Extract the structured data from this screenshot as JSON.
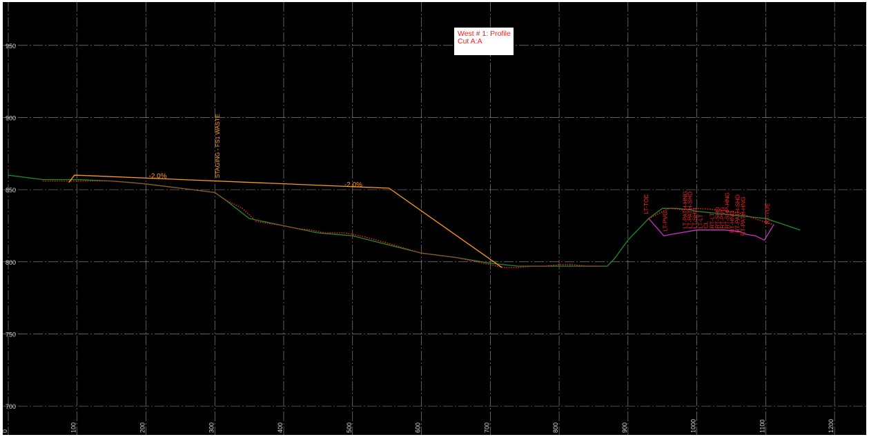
{
  "chart_data": {
    "type": "line",
    "title": "West # 1: Profile",
    "subtitle": "Cut A:A",
    "xlabel": "",
    "ylabel": "",
    "xlim": [
      -8,
      1246
    ],
    "ylim": [
      680,
      980
    ],
    "grid": true,
    "x_ticks": [
      0,
      100,
      200,
      300,
      400,
      500,
      600,
      700,
      800,
      900,
      1000,
      1100,
      1200
    ],
    "x_tick_labels": [
      "0",
      "100",
      "200",
      "300",
      "400",
      "500",
      "600",
      "700",
      "800",
      "900",
      "1000",
      "1100",
      "1200"
    ],
    "y_ticks": [
      700,
      750,
      800,
      850,
      900,
      950
    ],
    "y_tick_labels": [
      "700",
      "750",
      "800",
      "850",
      "900",
      "950"
    ],
    "series": [
      {
        "color": "#1f8f2a",
        "style": "solid",
        "x": [
          0,
          50,
          100,
          150,
          200,
          250,
          300,
          315,
          350,
          400,
          450,
          500,
          550,
          600,
          650,
          700,
          740,
          800,
          850,
          870,
          880,
          900,
          930,
          950,
          970,
          990,
          1000,
          1100,
          1150
        ],
        "y": [
          860,
          857,
          857,
          856,
          854,
          851,
          848,
          843,
          830,
          825,
          820,
          818,
          812,
          806,
          803,
          799,
          797,
          797,
          797,
          797,
          802,
          815,
          830,
          837,
          837,
          836,
          835,
          830,
          822
        ]
      },
      {
        "color": "#ff2020",
        "style": "dotted",
        "x": [
          50,
          90,
          120,
          150,
          180,
          300,
          315,
          340,
          360,
          400,
          420,
          440,
          460,
          470,
          480,
          490,
          500,
          520,
          550,
          600,
          650,
          680,
          700,
          720,
          740,
          760,
          780,
          800,
          820,
          840,
          860
        ],
        "y": [
          856,
          856,
          856,
          856,
          855,
          848,
          843,
          837,
          828,
          825,
          823,
          822,
          820,
          820,
          820,
          820,
          819,
          817,
          813,
          806,
          803,
          800,
          798,
          796,
          796,
          797,
          797,
          798,
          798,
          797,
          797
        ]
      },
      {
        "color": "#ff2020",
        "style": "dotted",
        "x": [
          930,
          960,
          980,
          1000,
          1030,
          1060,
          1090,
          1110
        ],
        "y": [
          830,
          837,
          836,
          837,
          836,
          834,
          829,
          826
        ]
      },
      {
        "color": "#ff9a1a",
        "style": "solid",
        "x": [
          88,
          96,
          100,
          553,
          717
        ],
        "y": [
          855,
          860,
          860,
          851,
          796
        ],
        "labels": [
          "-2.0%",
          "-2.0%"
        ],
        "label_x": [
          204,
          488
        ],
        "label_y": [
          858,
          852
        ]
      },
      {
        "color": "#cc33cc",
        "style": "solid",
        "x": [
          930,
          952,
          963,
          1000,
          1040,
          1062,
          1072,
          1085,
          1098,
          1112
        ],
        "y": [
          830,
          818,
          819,
          822,
          822,
          821,
          819,
          818,
          815,
          826
        ]
      }
    ],
    "annotations": [
      {
        "text": "STAGING - FS1 WASTE",
        "x": 307,
        "y": 858,
        "color": "#ff9a1a"
      },
      {
        "text": "LT-TOE",
        "x": 929,
        "y": 833,
        "color": "#ff2020"
      },
      {
        "text": "LT-PVG",
        "x": 957,
        "y": 821,
        "color": "#ff2020"
      },
      {
        "text": "LT-PATH-HNG",
        "x": 986,
        "y": 823,
        "color": "#ff2020"
      },
      {
        "text": "LT-PATH-SHD",
        "x": 993,
        "y": 823,
        "color": "#ff2020"
      },
      {
        "text": "LT-SHD",
        "x": 1000,
        "y": 823,
        "color": "#ff2020"
      },
      {
        "text": "LT-LT",
        "x": 1008,
        "y": 823,
        "color": "#ff2020"
      },
      {
        "text": "CL",
        "x": 1016,
        "y": 823,
        "color": "#ff2020"
      },
      {
        "text": "RT-LT",
        "x": 1025,
        "y": 823,
        "color": "#ff2020"
      },
      {
        "text": "RT-SHD",
        "x": 1033,
        "y": 823,
        "color": "#ff2020"
      },
      {
        "text": "RT-PVG",
        "x": 1040,
        "y": 823,
        "color": "#ff2020"
      },
      {
        "text": "RT-SHP-HNG",
        "x": 1047,
        "y": 823,
        "color": "#ff2020"
      },
      {
        "text": "RT-HNG",
        "x": 1054,
        "y": 820,
        "color": "#ff2020"
      },
      {
        "text": "RT-PATH-SHD",
        "x": 1062,
        "y": 820,
        "color": "#ff2020"
      },
      {
        "text": "RT-PATH-HNG",
        "x": 1070,
        "y": 818,
        "color": "#ff2020"
      },
      {
        "text": "RT-TOE",
        "x": 1105,
        "y": 826,
        "color": "#ff2020"
      }
    ]
  },
  "colors": {
    "background": "#000000",
    "grid": "#cfcfcf",
    "tick_label": "#d8d8d8",
    "existing_ground": "#1f8f2a",
    "survey_points": "#ff2020",
    "design_grade": "#ff9a1a",
    "road_section": "#cc33cc",
    "title_text": "#ff1a1a"
  }
}
